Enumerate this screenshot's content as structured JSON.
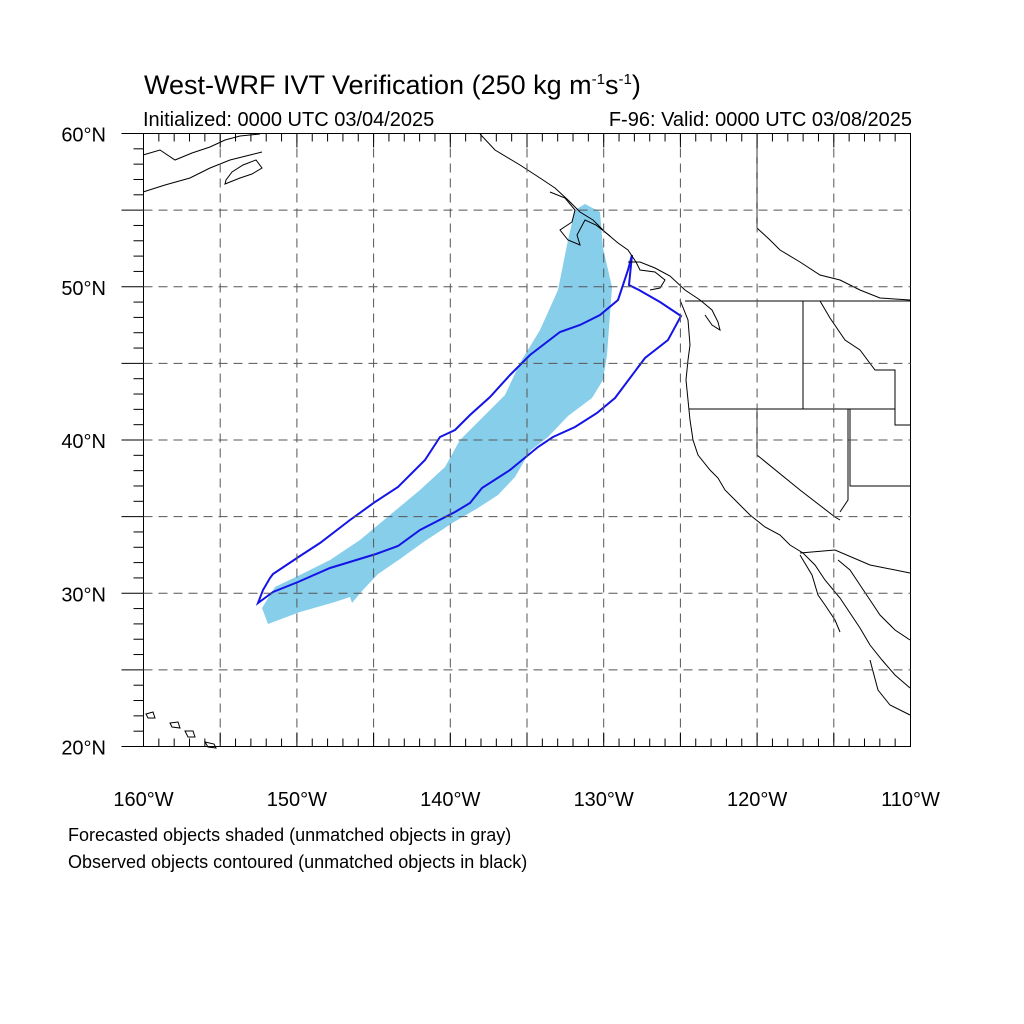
{
  "title": {
    "main": "West-WRF IVT Verification (250 kg m",
    "sup1": "-1",
    "mid": "s",
    "sup2": "-1",
    "end": ")"
  },
  "initialized": "Initialized: 0000 UTC 03/04/2025",
  "valid": "F-96: Valid: 0000 UTC 03/08/2025",
  "footnotes": {
    "line1": "Forecasted objects shaded (unmatched objects in gray)",
    "line2": "Observed objects contoured (unmatched objects in black)"
  },
  "axes": {
    "lon_range": [
      -160,
      -110
    ],
    "lat_range": [
      20,
      60
    ],
    "lon_labels": [
      "160°W",
      "150°W",
      "140°W",
      "130°W",
      "120°W",
      "110°W"
    ],
    "lat_labels": [
      "20°N",
      "30°N",
      "40°N",
      "50°N",
      "60°N"
    ]
  },
  "colors": {
    "forecast_fill": "#87ceeb",
    "observed_contour": "#1414e6",
    "coastline": "#000000",
    "grid": "#555555"
  }
}
